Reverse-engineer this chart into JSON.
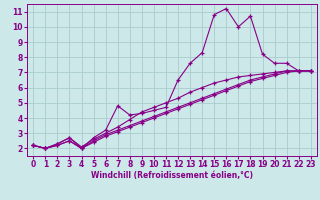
{
  "xlabel": "Windchill (Refroidissement éolien,°C)",
  "bg_color": "#cce8e8",
  "grid_color": "#aacccc",
  "line_color": "#880088",
  "marker": "+",
  "lines": [
    {
      "x": [
        0,
        1,
        2,
        3,
        4,
        5,
        6,
        7,
        8,
        9,
        10,
        11,
        12,
        13,
        14,
        15,
        16,
        17,
        18,
        19,
        20,
        21,
        22,
        23
      ],
      "y": [
        2.2,
        2.0,
        2.2,
        2.5,
        2.0,
        2.7,
        3.2,
        4.8,
        4.2,
        4.3,
        4.5,
        4.7,
        6.5,
        7.6,
        8.3,
        10.8,
        11.2,
        10.0,
        10.7,
        8.2,
        7.6,
        7.6,
        7.1,
        7.1
      ]
    },
    {
      "x": [
        0,
        1,
        2,
        3,
        4,
        5,
        6,
        7,
        8,
        9,
        10,
        11,
        12,
        13,
        14,
        15,
        16,
        17,
        18,
        19,
        20,
        21,
        22,
        23
      ],
      "y": [
        2.2,
        2.0,
        2.3,
        2.7,
        2.0,
        2.5,
        2.9,
        3.2,
        3.5,
        3.8,
        4.1,
        4.4,
        4.7,
        5.0,
        5.3,
        5.6,
        5.9,
        6.2,
        6.5,
        6.7,
        6.9,
        7.1,
        7.1,
        7.1
      ]
    },
    {
      "x": [
        0,
        1,
        2,
        3,
        4,
        5,
        6,
        7,
        8,
        9,
        10,
        11,
        12,
        13,
        14,
        15,
        16,
        17,
        18,
        19,
        20,
        21,
        22,
        23
      ],
      "y": [
        2.2,
        2.0,
        2.2,
        2.5,
        2.0,
        2.4,
        2.8,
        3.1,
        3.4,
        3.7,
        4.0,
        4.3,
        4.6,
        4.9,
        5.2,
        5.5,
        5.8,
        6.1,
        6.4,
        6.6,
        6.8,
        7.0,
        7.1,
        7.1
      ]
    },
    {
      "x": [
        0,
        1,
        2,
        3,
        4,
        5,
        6,
        7,
        8,
        9,
        10,
        11,
        12,
        13,
        14,
        15,
        16,
        17,
        18,
        19,
        20,
        21,
        22,
        23
      ],
      "y": [
        2.2,
        2.0,
        2.3,
        2.7,
        2.1,
        2.6,
        3.0,
        3.4,
        3.9,
        4.4,
        4.7,
        5.0,
        5.3,
        5.7,
        6.0,
        6.3,
        6.5,
        6.7,
        6.8,
        6.9,
        7.0,
        7.1,
        7.1,
        7.1
      ]
    }
  ],
  "xlim": [
    -0.5,
    23.5
  ],
  "ylim": [
    1.5,
    11.5
  ],
  "xticks": [
    0,
    1,
    2,
    3,
    4,
    5,
    6,
    7,
    8,
    9,
    10,
    11,
    12,
    13,
    14,
    15,
    16,
    17,
    18,
    19,
    20,
    21,
    22,
    23
  ],
  "yticks": [
    2,
    3,
    4,
    5,
    6,
    7,
    8,
    9,
    10,
    11
  ],
  "tick_fontsize": 5.5,
  "xlabel_fontsize": 5.5
}
